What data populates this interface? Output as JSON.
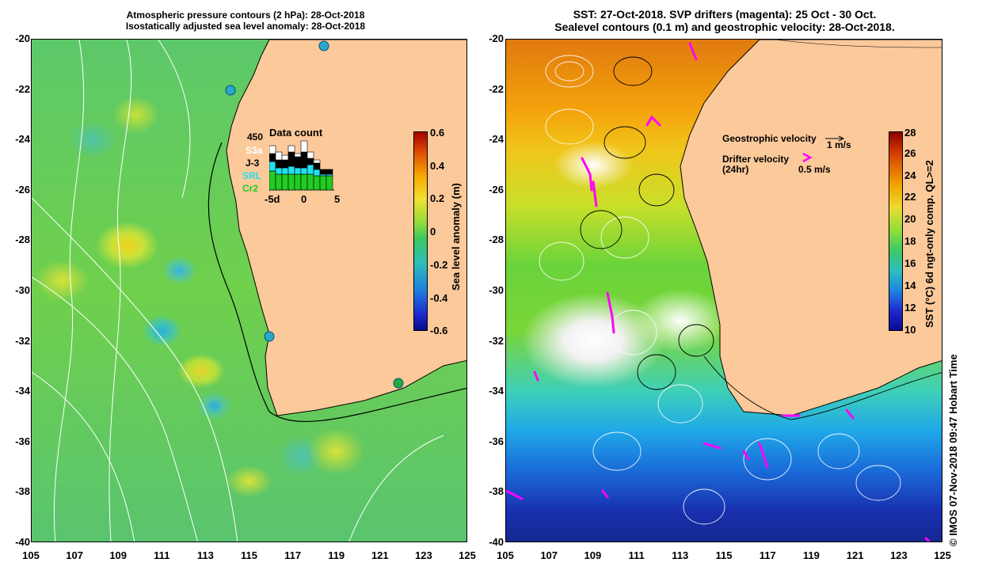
{
  "left_panel": {
    "title_line1": "Atmospheric pressure contours (2 hPa): 28-Oct-2018",
    "title_line2": "Isostatically adjusted sea level anomaly: 28-Oct-2018",
    "y_ticks": [
      "-20",
      "-22",
      "-24",
      "-26",
      "-28",
      "-30",
      "-32",
      "-34",
      "-36",
      "-38",
      "-40"
    ],
    "x_ticks": [
      "105",
      "107",
      "109",
      "111",
      "113",
      "115",
      "117",
      "119",
      "121",
      "123",
      "125"
    ],
    "colorbar": {
      "label": "Sea level anomaly (m)",
      "ticks": [
        "0.6",
        "0.4",
        "0.2",
        "0",
        "-0.2",
        "-0.4",
        "-0.6"
      ]
    },
    "data_count": {
      "title": "Data count",
      "max_label": "450",
      "satellites": [
        {
          "name": "S3a",
          "color": "#ffffff"
        },
        {
          "name": "J-3",
          "color": "#000000"
        },
        {
          "name": "SRL",
          "color": "#22e0f0"
        },
        {
          "name": "Cr2",
          "color": "#22cc22"
        }
      ],
      "x_labels": [
        "-5d",
        "0",
        "5"
      ]
    }
  },
  "right_panel": {
    "title_line1": "SST: 27-Oct-2018. SVP drifters (magenta): 25 Oct - 30 Oct.",
    "title_line2": "Sealevel contours (0.1 m) and geostrophic velocity: 28-Oct-2018.",
    "y_ticks": [
      "-20",
      "-22",
      "-24",
      "-26",
      "-28",
      "-30",
      "-32",
      "-34",
      "-36",
      "-38",
      "-40"
    ],
    "x_ticks": [
      "105",
      "107",
      "109",
      "111",
      "113",
      "115",
      "117",
      "119",
      "121",
      "123",
      "125"
    ],
    "legend": {
      "geostrophic_label": "Geostrophic velocity",
      "geostrophic_scale": "1 m/s",
      "drifter_label": "Drifter velocity",
      "drifter_sub": "(24hr)",
      "drifter_scale": "0.5 m/s",
      "drifter_color": "#ff00ff"
    },
    "colorbar": {
      "label": "SST (°C) 6d ngt-only comp. QL>=2",
      "ticks": [
        "28",
        "26",
        "24",
        "22",
        "20",
        "18",
        "16",
        "14",
        "12",
        "10"
      ]
    }
  },
  "credit": "© IMOS 07-Nov-2018 09:47 Hobart Time",
  "colors": {
    "land": "#fbc99a",
    "coastline": "#000000"
  }
}
